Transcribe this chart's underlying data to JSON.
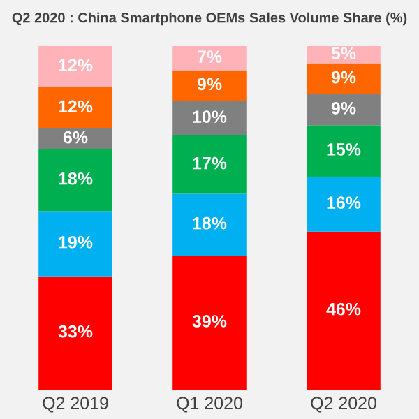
{
  "chart_data": {
    "type": "bar",
    "title": "Q2 2020 : China Smartphone OEMs Sales Volume Share (%)",
    "categories": [
      "Q2 2019",
      "Q1 2020",
      "Q2 2020"
    ],
    "stacked": true,
    "legend": false,
    "grid": false,
    "series": [
      {
        "color": "#ff0000",
        "values": [
          33,
          39,
          46
        ],
        "value_labels": [
          "33%",
          "39%",
          "46%"
        ]
      },
      {
        "color": "#00b0f0",
        "values": [
          19,
          18,
          16
        ],
        "value_labels": [
          "19%",
          "18%",
          "16%"
        ]
      },
      {
        "color": "#00b050",
        "values": [
          18,
          17,
          15
        ],
        "value_labels": [
          "18%",
          "17%",
          "15%"
        ]
      },
      {
        "color": "#808080",
        "values": [
          6,
          10,
          9
        ],
        "value_labels": [
          "6%",
          "10%",
          "9%"
        ]
      },
      {
        "color": "#ff6600",
        "values": [
          12,
          9,
          9
        ],
        "value_labels": [
          "12%",
          "9%",
          "9%"
        ]
      },
      {
        "color": "#ffb3b9",
        "values": [
          12,
          7,
          5
        ],
        "value_labels": [
          "12%",
          "7%",
          "5%"
        ]
      }
    ]
  }
}
